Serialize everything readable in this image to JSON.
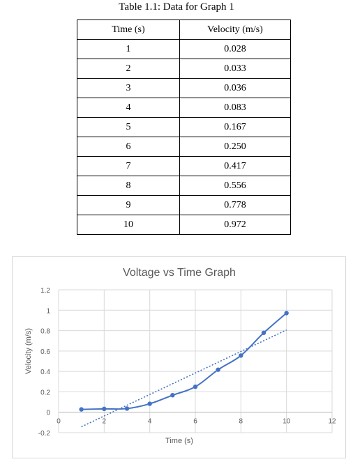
{
  "table": {
    "caption": "Table 1.1: Data for Graph 1",
    "headers": [
      "Time (s)",
      "Velocity (m/s)"
    ],
    "rows": [
      [
        "1",
        "0.028"
      ],
      [
        "2",
        "0.033"
      ],
      [
        "3",
        "0.036"
      ],
      [
        "4",
        "0.083"
      ],
      [
        "5",
        "0.167"
      ],
      [
        "6",
        "0.250"
      ],
      [
        "7",
        "0.417"
      ],
      [
        "8",
        "0.556"
      ],
      [
        "9",
        "0.778"
      ],
      [
        "10",
        "0.972"
      ]
    ]
  },
  "chart_data": {
    "type": "scatter",
    "title": "Voltage vs Time Graph",
    "xlabel": "Time (s)",
    "ylabel": "Velocity (m/s)",
    "xlim": [
      0,
      12
    ],
    "ylim": [
      -0.2,
      1.2
    ],
    "xticks": [
      "0",
      "2",
      "4",
      "6",
      "8",
      "10",
      "12"
    ],
    "yticks": [
      "-0.2",
      "0",
      "0.2",
      "0.4",
      "0.6",
      "0.8",
      "1",
      "1.2"
    ],
    "grid": true,
    "line_style": "smoothed line with markers",
    "series": [
      {
        "x": [
          1,
          2,
          3,
          4,
          5,
          6,
          7,
          8,
          9,
          10
        ],
        "y": [
          0.028,
          0.033,
          0.036,
          0.083,
          0.167,
          0.25,
          0.417,
          0.556,
          0.778,
          0.972
        ],
        "color": "#4472c4"
      }
    ],
    "trendline": {
      "type": "linear",
      "style": "dotted",
      "color": "#4472c4"
    }
  }
}
